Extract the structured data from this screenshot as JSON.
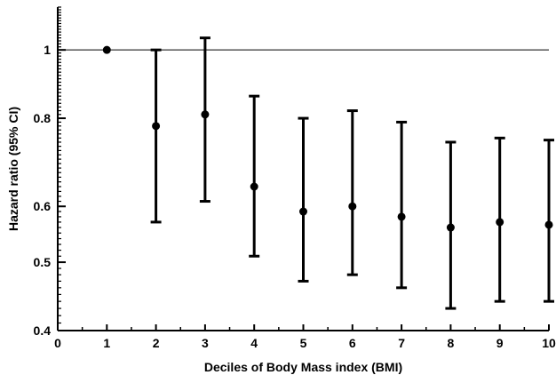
{
  "chart_data": {
    "type": "scatter",
    "title": "",
    "xlabel": "Deciles of Body Mass index (BMI)",
    "ylabel": "Hazard ratio (95% CI)",
    "scale": "log",
    "xlim": [
      0,
      10
    ],
    "ylim": [
      0.4,
      1.15
    ],
    "xticks": [
      "0",
      "1",
      "2",
      "3",
      "4",
      "5",
      "6",
      "7",
      "8",
      "9",
      "10"
    ],
    "yticks": [
      {
        "value": 0.4,
        "label": "0.4"
      },
      {
        "value": 0.5,
        "label": "0.5"
      },
      {
        "value": 0.6,
        "label": "0.6"
      },
      {
        "value": 0.8,
        "label": "0.8"
      },
      {
        "value": 1.0,
        "label": "1"
      }
    ],
    "reference_line": 1.0,
    "grid": false,
    "series": [
      {
        "points": [
          {
            "x": 1,
            "y": 1.0
          },
          {
            "x": 2,
            "y": 0.78,
            "lower": 0.57,
            "upper": 1.0
          },
          {
            "x": 3,
            "y": 0.81,
            "lower": 0.61,
            "upper": 1.04
          },
          {
            "x": 4,
            "y": 0.64,
            "lower": 0.51,
            "upper": 0.86
          },
          {
            "x": 5,
            "y": 0.59,
            "lower": 0.47,
            "upper": 0.8
          },
          {
            "x": 6,
            "y": 0.6,
            "lower": 0.48,
            "upper": 0.82
          },
          {
            "x": 7,
            "y": 0.58,
            "lower": 0.46,
            "upper": 0.79
          },
          {
            "x": 8,
            "y": 0.56,
            "lower": 0.43,
            "upper": 0.74
          },
          {
            "x": 9,
            "y": 0.57,
            "lower": 0.44,
            "upper": 0.75
          },
          {
            "x": 10,
            "y": 0.565,
            "lower": 0.44,
            "upper": 0.745
          }
        ]
      }
    ]
  }
}
